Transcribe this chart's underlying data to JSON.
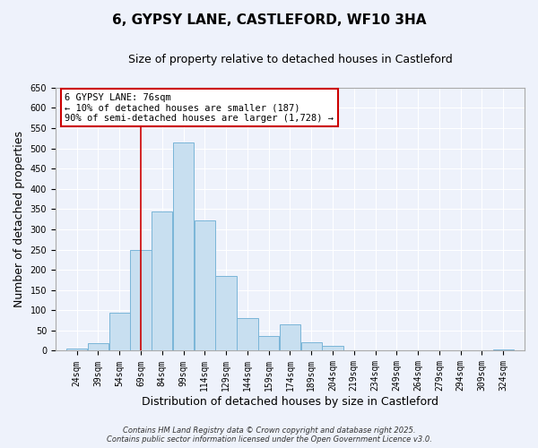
{
  "title": "6, GYPSY LANE, CASTLEFORD, WF10 3HA",
  "subtitle": "Size of property relative to detached houses in Castleford",
  "xlabel": "Distribution of detached houses by size in Castleford",
  "ylabel": "Number of detached properties",
  "categories": [
    "24sqm",
    "39sqm",
    "54sqm",
    "69sqm",
    "84sqm",
    "99sqm",
    "114sqm",
    "129sqm",
    "144sqm",
    "159sqm",
    "174sqm",
    "189sqm",
    "204sqm",
    "219sqm",
    "234sqm",
    "249sqm",
    "264sqm",
    "279sqm",
    "294sqm",
    "309sqm",
    "324sqm"
  ],
  "bin_starts": [
    24,
    39,
    54,
    69,
    84,
    99,
    114,
    129,
    144,
    159,
    174,
    189,
    204,
    219,
    234,
    249,
    264,
    279,
    294,
    309,
    324
  ],
  "bin_width": 15,
  "values": [
    5,
    18,
    95,
    250,
    345,
    515,
    322,
    185,
    80,
    37,
    65,
    20,
    13,
    0,
    0,
    0,
    0,
    0,
    0,
    0,
    3
  ],
  "bar_color": "#c8dff0",
  "bar_edge_color": "#7ab5d8",
  "vline_x": 76.5,
  "vline_color": "#cc0000",
  "annotation_line1": "6 GYPSY LANE: 76sqm",
  "annotation_line2": "← 10% of detached houses are smaller (187)",
  "annotation_line3": "90% of semi-detached houses are larger (1,728) →",
  "annotation_box_facecolor": "#ffffff",
  "annotation_box_edgecolor": "#cc0000",
  "ylim": [
    0,
    650
  ],
  "yticks": [
    0,
    50,
    100,
    150,
    200,
    250,
    300,
    350,
    400,
    450,
    500,
    550,
    600,
    650
  ],
  "footer_line1": "Contains HM Land Registry data © Crown copyright and database right 2025.",
  "footer_line2": "Contains public sector information licensed under the Open Government Licence v3.0.",
  "bg_color": "#eef2fb",
  "grid_color": "#ffffff",
  "title_fontsize": 11,
  "subtitle_fontsize": 9,
  "axis_label_fontsize": 9,
  "tick_fontsize": 7,
  "annotation_fontsize": 7.5,
  "footer_fontsize": 6
}
